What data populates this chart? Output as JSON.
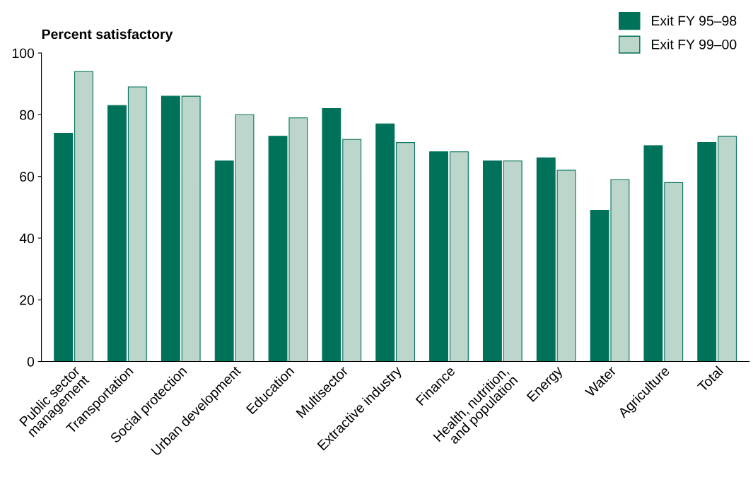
{
  "chart_data": {
    "type": "bar",
    "ylabel": "Percent satisfactory",
    "categories": [
      "Public sector\nmanagement",
      "Transportation",
      "Social protection",
      "Urban development",
      "Education",
      "Multisector",
      "Extractive industry",
      "Finance",
      "Health, nutrition,\nand population",
      "Energy",
      "Water",
      "Agriculture",
      "Total"
    ],
    "series": [
      {
        "name": "Exit FY 95–98",
        "color": "#00725a",
        "values": [
          74,
          83,
          86,
          65,
          73,
          82,
          77,
          68,
          65,
          66,
          49,
          70,
          71
        ]
      },
      {
        "name": "Exit FY 99–00",
        "color": "#bdd6cb",
        "values": [
          94,
          89,
          86,
          80,
          79,
          72,
          71,
          68,
          65,
          62,
          59,
          58,
          73
        ]
      }
    ],
    "ylim": [
      0,
      100
    ],
    "yticks": [
      0,
      20,
      40,
      60,
      80,
      100
    ],
    "grid": false,
    "legend": "top right"
  }
}
